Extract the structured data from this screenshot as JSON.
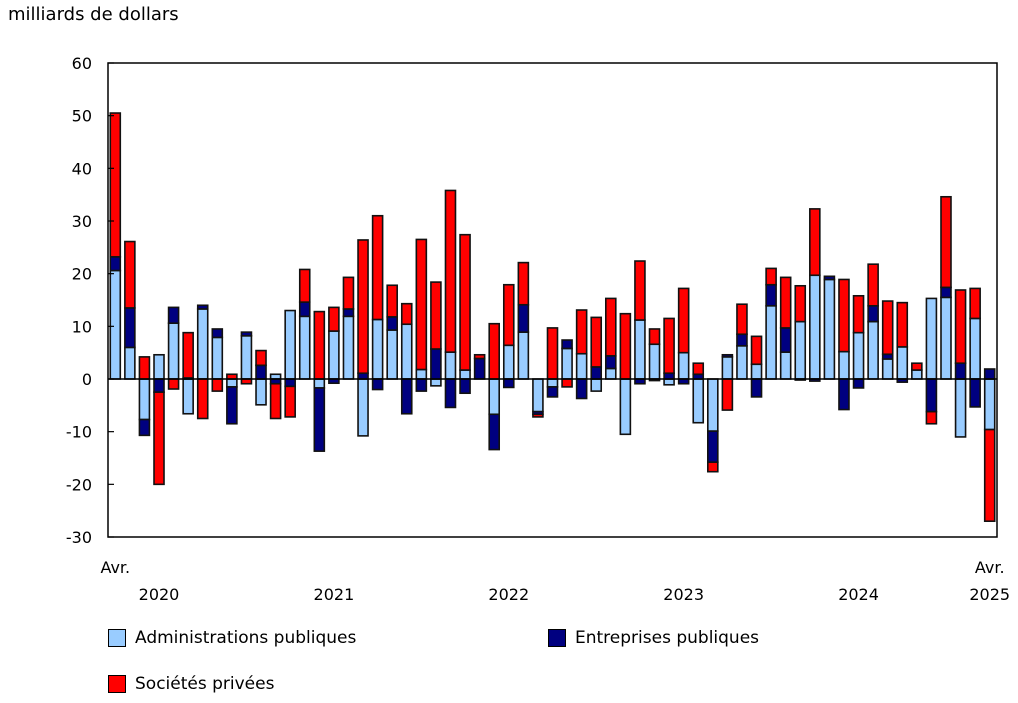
{
  "chart_data": {
    "type": "bar",
    "stacked": true,
    "ylabel": "milliards de dollars",
    "ylim": [
      -30,
      60
    ],
    "yticks": [
      60,
      50,
      40,
      30,
      20,
      10,
      0,
      -10,
      -20,
      -30
    ],
    "grid": false,
    "legend_position": "bottom",
    "x_start": "Avr. 2020",
    "x_end": "Avr. 2025",
    "x_labels": [
      {
        "month": "Avr.",
        "year": "2020",
        "index": 0
      },
      {
        "year": "2020",
        "index": 3
      },
      {
        "year": "2021",
        "index": 15
      },
      {
        "year": "2022",
        "index": 27
      },
      {
        "year": "2023",
        "index": 39
      },
      {
        "year": "2024",
        "index": 51
      },
      {
        "month": "Avr.",
        "year": "2025",
        "index": 60
      }
    ],
    "series": [
      {
        "name": "Administrations publiques",
        "color": "#99ccff",
        "values": [
          20.6,
          6.0,
          -7.7,
          4.6,
          10.6,
          -6.6,
          13.3,
          7.9,
          -1.5,
          8.2,
          -4.9,
          0.9,
          13.0,
          11.9,
          -1.7,
          9.1,
          11.9,
          -10.8,
          11.3,
          9.3,
          10.4,
          1.8,
          -1.3,
          5.1,
          1.7,
          0,
          -6.7,
          6.4,
          8.9,
          -6.2,
          -1.5,
          5.8,
          4.8,
          -2.3,
          2.0,
          -10.5,
          11.2,
          6.6,
          -1.1,
          5.0,
          -8.3,
          -9.9,
          4.2,
          6.3,
          2.8,
          13.9,
          5.1,
          10.9,
          19.7,
          18.9,
          5.2,
          8.8,
          10.9,
          3.8,
          6.1,
          1.7,
          15.3,
          15.5,
          -11.0,
          11.5,
          -9.6
        ]
      },
      {
        "name": "Entreprises publiques",
        "color": "#000080",
        "values": [
          2.6,
          7.5,
          -3.0,
          -2.5,
          3.0,
          0.2,
          0.7,
          1.6,
          -7.0,
          0.7,
          2.6,
          -0.9,
          -1.4,
          2.7,
          -12.0,
          -0.8,
          1.4,
          1.1,
          -2.0,
          2.5,
          -6.6,
          -2.3,
          5.7,
          -5.4,
          -2.7,
          3.9,
          -6.7,
          -1.6,
          5.2,
          -0.5,
          -1.9,
          1.6,
          -3.7,
          2.3,
          2.4,
          0,
          -0.9,
          -0.3,
          1.1,
          -0.9,
          0.9,
          -5.9,
          0.4,
          2.2,
          -3.4,
          4.0,
          4.6,
          -0.2,
          -0.4,
          0.6,
          -5.8,
          -1.7,
          3.0,
          0.9,
          -0.6,
          0,
          -6.2,
          1.9,
          3.0,
          -5.3,
          1.9
        ]
      },
      {
        "name": "Sociétés privées",
        "color": "#ff0000",
        "values": [
          27.3,
          12.6,
          4.2,
          -17.5,
          -1.9,
          8.6,
          -7.5,
          -2.3,
          0.9,
          -0.9,
          2.8,
          -6.6,
          -5.8,
          6.2,
          12.8,
          4.5,
          6.0,
          25.3,
          19.7,
          6.0,
          3.9,
          24.7,
          12.7,
          30.7,
          25.7,
          0.7,
          10.5,
          11.5,
          8.0,
          -0.5,
          9.7,
          -1.5,
          8.3,
          9.4,
          10.9,
          12.4,
          11.2,
          2.9,
          10.4,
          12.2,
          2.1,
          -1.8,
          -5.9,
          5.7,
          5.3,
          3.1,
          9.6,
          6.8,
          12.6,
          0,
          13.7,
          7.0,
          7.9,
          10.1,
          8.4,
          1.3,
          -2.3,
          17.2,
          13.9,
          5.7,
          -17.4
        ]
      }
    ]
  }
}
